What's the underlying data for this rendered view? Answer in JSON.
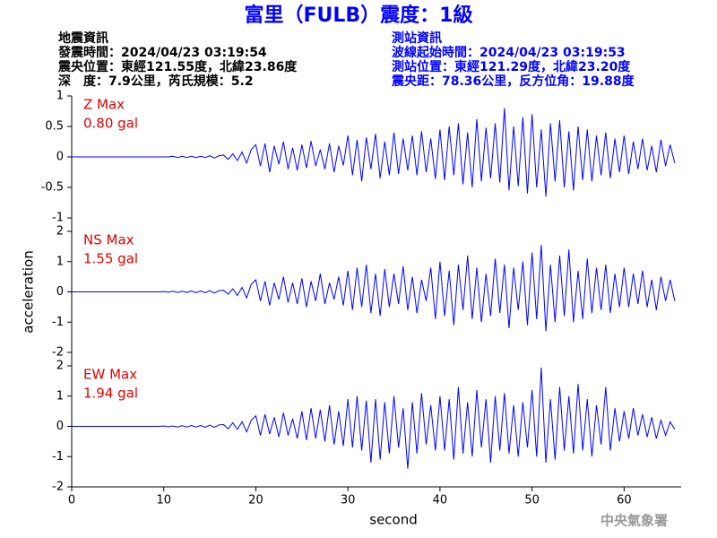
{
  "header": {
    "title": "富里（FULB）震度：1級",
    "left": [
      "地震資訊",
      "發震時間：2024/04/23 03:19:54",
      "震央位置：東經121.55度，北緯23.86度",
      "深　度：7.9公里，芮氏規模：5.2"
    ],
    "right": [
      "測站資訊",
      "波線起始時間：2024/04/23 03:19:53",
      "測站位置：東經121.29度，北緯23.20度",
      "震央距：78.36公里，反方位角：19.88度"
    ]
  },
  "footer": "中央氣象署",
  "chart_data": [
    {
      "type": "line",
      "color": "#0000ff",
      "label": "Z Max",
      "max_label": "0.80 gal",
      "xlim": [
        0,
        66
      ],
      "ylim": [
        -1,
        1
      ],
      "yticks": [
        -1,
        -0.5,
        0,
        0.5,
        1
      ],
      "x": [
        0,
        0.5,
        1,
        1.5,
        2,
        2.5,
        3,
        3.5,
        4,
        4.5,
        5,
        5.5,
        6,
        6.5,
        7,
        7.5,
        8,
        8.5,
        9,
        9.5,
        10,
        10.5,
        11,
        11.5,
        12,
        12.5,
        13,
        13.5,
        14,
        14.5,
        15,
        15.5,
        16,
        16.5,
        17,
        17.5,
        18,
        18.5,
        19,
        19.5,
        20,
        20.5,
        21,
        21.5,
        22,
        22.5,
        23,
        23.5,
        24,
        24.5,
        25,
        25.5,
        26,
        26.5,
        27,
        27.5,
        28,
        28.5,
        29,
        29.5,
        30,
        30.5,
        31,
        31.5,
        32,
        32.5,
        33,
        33.5,
        34,
        34.5,
        35,
        35.5,
        36,
        36.5,
        37,
        37.5,
        38,
        38.5,
        39,
        39.5,
        40,
        40.5,
        41,
        41.5,
        42,
        42.5,
        43,
        43.5,
        44,
        44.5,
        45,
        45.5,
        46,
        46.5,
        47,
        47.5,
        48,
        48.5,
        49,
        49.5,
        50,
        50.5,
        51,
        51.5,
        52,
        52.5,
        53,
        53.5,
        54,
        54.5,
        55,
        55.5,
        56,
        56.5,
        57,
        57.5,
        58,
        58.5,
        59,
        59.5,
        60,
        60.5,
        61,
        61.5,
        62,
        62.5,
        63,
        63.5,
        64,
        64.5,
        65,
        65.5
      ],
      "values": [
        0,
        0,
        0,
        0,
        0,
        0,
        0,
        0,
        0,
        0,
        0,
        0,
        0,
        0,
        0,
        0,
        0,
        0,
        0,
        0,
        0,
        0,
        0.01,
        -0.01,
        0.01,
        -0.01,
        0.01,
        -0.01,
        0.01,
        -0.01,
        0.02,
        -0.02,
        0.02,
        0.03,
        -0.04,
        0.05,
        -0.06,
        0.08,
        -0.1,
        0.12,
        0.2,
        -0.15,
        0.22,
        -0.25,
        0.18,
        -0.12,
        0.25,
        -0.2,
        0.15,
        -0.22,
        0.2,
        -0.18,
        0.26,
        -0.15,
        0.12,
        -0.2,
        0.22,
        -0.25,
        0.18,
        -0.14,
        0.35,
        -0.3,
        0.28,
        -0.4,
        0.32,
        -0.2,
        0.38,
        -0.35,
        0.25,
        -0.3,
        0.4,
        -0.28,
        0.3,
        -0.22,
        0.35,
        -0.3,
        0.42,
        -0.25,
        0.3,
        -0.36,
        0.45,
        -0.38,
        0.5,
        -0.3,
        0.55,
        -0.45,
        0.4,
        -0.5,
        0.62,
        -0.4,
        0.48,
        -0.35,
        0.55,
        -0.42,
        0.8,
        -0.55,
        0.5,
        -0.48,
        0.65,
        -0.6,
        0.7,
        -0.5,
        0.45,
        -0.65,
        0.55,
        -0.4,
        0.6,
        -0.5,
        0.42,
        -0.55,
        0.5,
        -0.38,
        0.45,
        -0.4,
        0.35,
        -0.3,
        0.4,
        -0.35,
        0.3,
        -0.25,
        0.35,
        -0.28,
        0.25,
        -0.2,
        0.3,
        -0.22,
        0.18,
        -0.25,
        0.28,
        -0.15,
        0.2,
        -0.1
      ]
    },
    {
      "type": "line",
      "color": "#0000ff",
      "label": "NS Max",
      "max_label": "1.55 gal",
      "y_label": "acceleration",
      "xlim": [
        0,
        66
      ],
      "ylim": [
        -2,
        2
      ],
      "yticks": [
        -2,
        -1,
        0,
        1,
        2
      ],
      "x": [
        0,
        0.5,
        1,
        1.5,
        2,
        2.5,
        3,
        3.5,
        4,
        4.5,
        5,
        5.5,
        6,
        6.5,
        7,
        7.5,
        8,
        8.5,
        9,
        9.5,
        10,
        10.5,
        11,
        11.5,
        12,
        12.5,
        13,
        13.5,
        14,
        14.5,
        15,
        15.5,
        16,
        16.5,
        17,
        17.5,
        18,
        18.5,
        19,
        19.5,
        20,
        20.5,
        21,
        21.5,
        22,
        22.5,
        23,
        23.5,
        24,
        24.5,
        25,
        25.5,
        26,
        26.5,
        27,
        27.5,
        28,
        28.5,
        29,
        29.5,
        30,
        30.5,
        31,
        31.5,
        32,
        32.5,
        33,
        33.5,
        34,
        34.5,
        35,
        35.5,
        36,
        36.5,
        37,
        37.5,
        38,
        38.5,
        39,
        39.5,
        40,
        40.5,
        41,
        41.5,
        42,
        42.5,
        43,
        43.5,
        44,
        44.5,
        45,
        45.5,
        46,
        46.5,
        47,
        47.5,
        48,
        48.5,
        49,
        49.5,
        50,
        50.5,
        51,
        51.5,
        52,
        52.5,
        53,
        53.5,
        54,
        54.5,
        55,
        55.5,
        56,
        56.5,
        57,
        57.5,
        58,
        58.5,
        59,
        59.5,
        60,
        60.5,
        61,
        61.5,
        62,
        62.5,
        63,
        63.5,
        64,
        64.5,
        65,
        65.5
      ],
      "values": [
        0,
        0,
        0,
        0,
        0,
        0,
        0,
        0,
        0,
        0,
        0,
        0,
        0,
        0,
        0,
        0,
        0,
        0,
        0,
        0,
        0.01,
        -0.01,
        0.02,
        -0.02,
        0.02,
        -0.02,
        0.03,
        -0.03,
        0.03,
        -0.03,
        0.04,
        -0.04,
        0.04,
        0.05,
        -0.08,
        0.1,
        -0.12,
        0.15,
        -0.2,
        0.25,
        0.4,
        -0.3,
        0.35,
        -0.45,
        0.3,
        -0.25,
        0.5,
        -0.35,
        0.3,
        -0.4,
        0.45,
        -0.5,
        0.35,
        -0.3,
        0.6,
        -0.4,
        0.3,
        -0.25,
        0.5,
        -0.45,
        0.7,
        -0.6,
        0.8,
        -0.5,
        0.9,
        -0.7,
        0.6,
        -0.8,
        0.75,
        -0.5,
        0.6,
        -0.4,
        0.85,
        -0.6,
        0.5,
        -0.7,
        0.4,
        -0.3,
        0.8,
        -0.9,
        1.0,
        -0.8,
        0.7,
        -1.1,
        0.9,
        -0.6,
        1.2,
        -0.9,
        0.8,
        -1.0,
        0.6,
        -0.8,
        1.1,
        -0.7,
        0.9,
        -1.2,
        0.8,
        -0.6,
        1.0,
        -1.1,
        1.3,
        -0.9,
        1.55,
        -1.3,
        0.9,
        -1.0,
        1.2,
        -0.8,
        1.4,
        -1.0,
        0.7,
        -0.9,
        1.1,
        -0.7,
        0.8,
        -0.6,
        0.9,
        -0.7,
        0.6,
        -0.5,
        0.8,
        -0.5,
        0.6,
        -0.4,
        0.7,
        -0.5,
        0.4,
        -0.6,
        0.5,
        -0.3,
        0.4,
        -0.3
      ]
    },
    {
      "type": "line",
      "color": "#0000ff",
      "label": "EW Max",
      "max_label": "1.94 gal",
      "x_label": "second",
      "xlim": [
        0,
        66
      ],
      "ylim": [
        -2,
        2
      ],
      "yticks": [
        -2,
        -1,
        0,
        1,
        2
      ],
      "xticks": [
        0,
        10,
        20,
        30,
        40,
        50,
        60
      ],
      "x": [
        0,
        0.5,
        1,
        1.5,
        2,
        2.5,
        3,
        3.5,
        4,
        4.5,
        5,
        5.5,
        6,
        6.5,
        7,
        7.5,
        8,
        8.5,
        9,
        9.5,
        10,
        10.5,
        11,
        11.5,
        12,
        12.5,
        13,
        13.5,
        14,
        14.5,
        15,
        15.5,
        16,
        16.5,
        17,
        17.5,
        18,
        18.5,
        19,
        19.5,
        20,
        20.5,
        21,
        21.5,
        22,
        22.5,
        23,
        23.5,
        24,
        24.5,
        25,
        25.5,
        26,
        26.5,
        27,
        27.5,
        28,
        28.5,
        29,
        29.5,
        30,
        30.5,
        31,
        31.5,
        32,
        32.5,
        33,
        33.5,
        34,
        34.5,
        35,
        35.5,
        36,
        36.5,
        37,
        37.5,
        38,
        38.5,
        39,
        39.5,
        40,
        40.5,
        41,
        41.5,
        42,
        42.5,
        43,
        43.5,
        44,
        44.5,
        45,
        45.5,
        46,
        46.5,
        47,
        47.5,
        48,
        48.5,
        49,
        49.5,
        50,
        50.5,
        51,
        51.5,
        52,
        52.5,
        53,
        53.5,
        54,
        54.5,
        55,
        55.5,
        56,
        56.5,
        57,
        57.5,
        58,
        58.5,
        59,
        59.5,
        60,
        60.5,
        61,
        61.5,
        62,
        62.5,
        63,
        63.5,
        64,
        64.5,
        65,
        65.5
      ],
      "values": [
        0,
        0,
        0,
        0,
        0,
        0,
        0,
        0,
        0,
        0,
        0,
        0,
        0,
        0,
        0,
        0,
        0,
        0,
        0,
        0,
        0.01,
        -0.01,
        0.01,
        -0.02,
        0.02,
        -0.02,
        0.03,
        -0.02,
        0.03,
        -0.03,
        0.04,
        -0.03,
        0.05,
        0.06,
        -0.08,
        0.12,
        -0.1,
        0.15,
        -0.18,
        0.2,
        0.35,
        -0.3,
        0.4,
        -0.25,
        0.3,
        -0.35,
        0.45,
        -0.3,
        0.25,
        -0.4,
        0.5,
        -0.45,
        0.6,
        -0.4,
        0.55,
        -0.5,
        0.7,
        -0.6,
        0.5,
        -0.65,
        0.9,
        -0.7,
        1.0,
        -0.8,
        0.85,
        -1.2,
        0.9,
        -1.1,
        0.8,
        -0.9,
        1.0,
        -0.7,
        0.6,
        -1.4,
        0.8,
        -0.9,
        1.1,
        -0.6,
        0.7,
        -0.8,
        1.0,
        -0.8,
        0.9,
        -1.1,
        1.3,
        -0.9,
        0.8,
        -1.0,
        1.2,
        -0.7,
        0.9,
        -1.2,
        1.0,
        -0.8,
        1.1,
        -0.9,
        0.7,
        -1.0,
        0.8,
        -0.7,
        1.2,
        -1.0,
        1.94,
        -1.2,
        0.9,
        -1.1,
        1.3,
        -0.8,
        1.0,
        -0.9,
        1.4,
        -0.8,
        0.9,
        -1.0,
        0.7,
        -0.6,
        1.3,
        -0.8,
        0.6,
        -0.5,
        0.5,
        -0.4,
        0.6,
        -0.3,
        0.4,
        -0.35,
        0.3,
        -0.4,
        0.2,
        -0.3,
        0.15,
        -0.1
      ]
    }
  ]
}
